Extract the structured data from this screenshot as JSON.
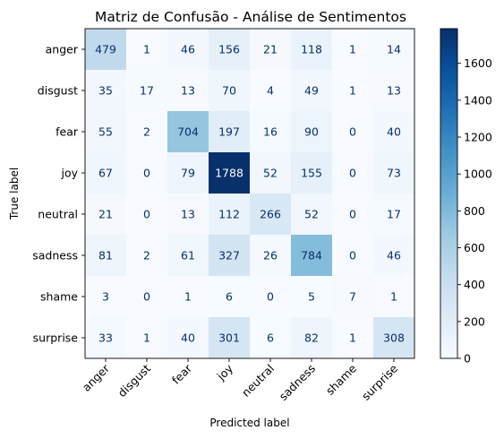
{
  "chart_data": {
    "type": "heatmap",
    "title": "Matriz de Confusão - Análise de Sentimentos",
    "xlabel": "Predicted label",
    "ylabel": "True label",
    "x_categories": [
      "anger",
      "disgust",
      "fear",
      "joy",
      "neutral",
      "sadness",
      "shame",
      "surprise"
    ],
    "y_categories": [
      "anger",
      "disgust",
      "fear",
      "joy",
      "neutral",
      "sadness",
      "shame",
      "surprise"
    ],
    "values": [
      [
        479,
        1,
        46,
        156,
        21,
        118,
        1,
        14
      ],
      [
        35,
        17,
        13,
        70,
        4,
        49,
        1,
        13
      ],
      [
        55,
        2,
        704,
        197,
        16,
        90,
        0,
        40
      ],
      [
        67,
        0,
        79,
        1788,
        52,
        155,
        0,
        73
      ],
      [
        21,
        0,
        13,
        112,
        266,
        52,
        0,
        17
      ],
      [
        81,
        2,
        61,
        327,
        26,
        784,
        0,
        46
      ],
      [
        3,
        0,
        1,
        6,
        0,
        5,
        7,
        1
      ],
      [
        33,
        1,
        40,
        301,
        6,
        82,
        1,
        308
      ]
    ],
    "colormap": "Blues",
    "color_range": [
      0,
      1788
    ],
    "colorbar_ticks": [
      0,
      200,
      400,
      600,
      800,
      1000,
      1200,
      1400,
      1600
    ],
    "x_tick_rotation_deg": 45
  }
}
